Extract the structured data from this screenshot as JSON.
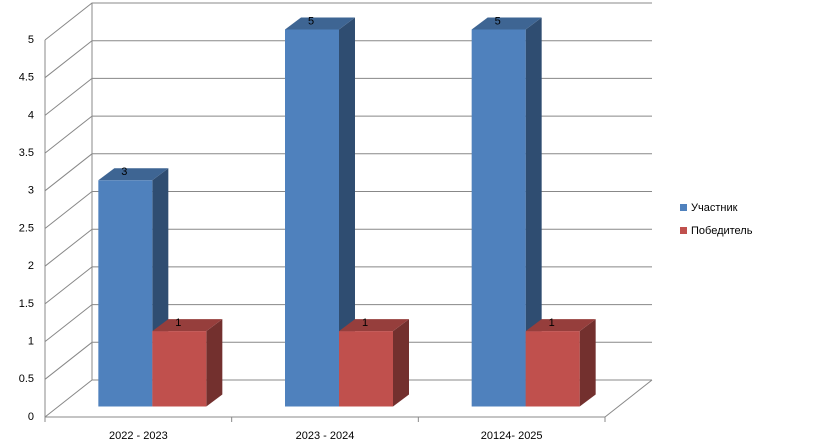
{
  "chart_data": {
    "type": "bar3d",
    "categories": [
      "2022 - 2023",
      "2023 - 2024",
      "20124- 2025"
    ],
    "series": [
      {
        "name": "Участник",
        "color": "#4f81bd",
        "values": [
          3,
          5,
          5
        ]
      },
      {
        "name": "Победитель",
        "color": "#c0504d",
        "values": [
          1,
          1,
          1
        ]
      }
    ],
    "ylim": [
      0,
      5
    ],
    "yticks": [
      0,
      0.5,
      1,
      1.5,
      2,
      2.5,
      3,
      3.5,
      4,
      4.5,
      5
    ],
    "grid": true,
    "legend": "right"
  }
}
